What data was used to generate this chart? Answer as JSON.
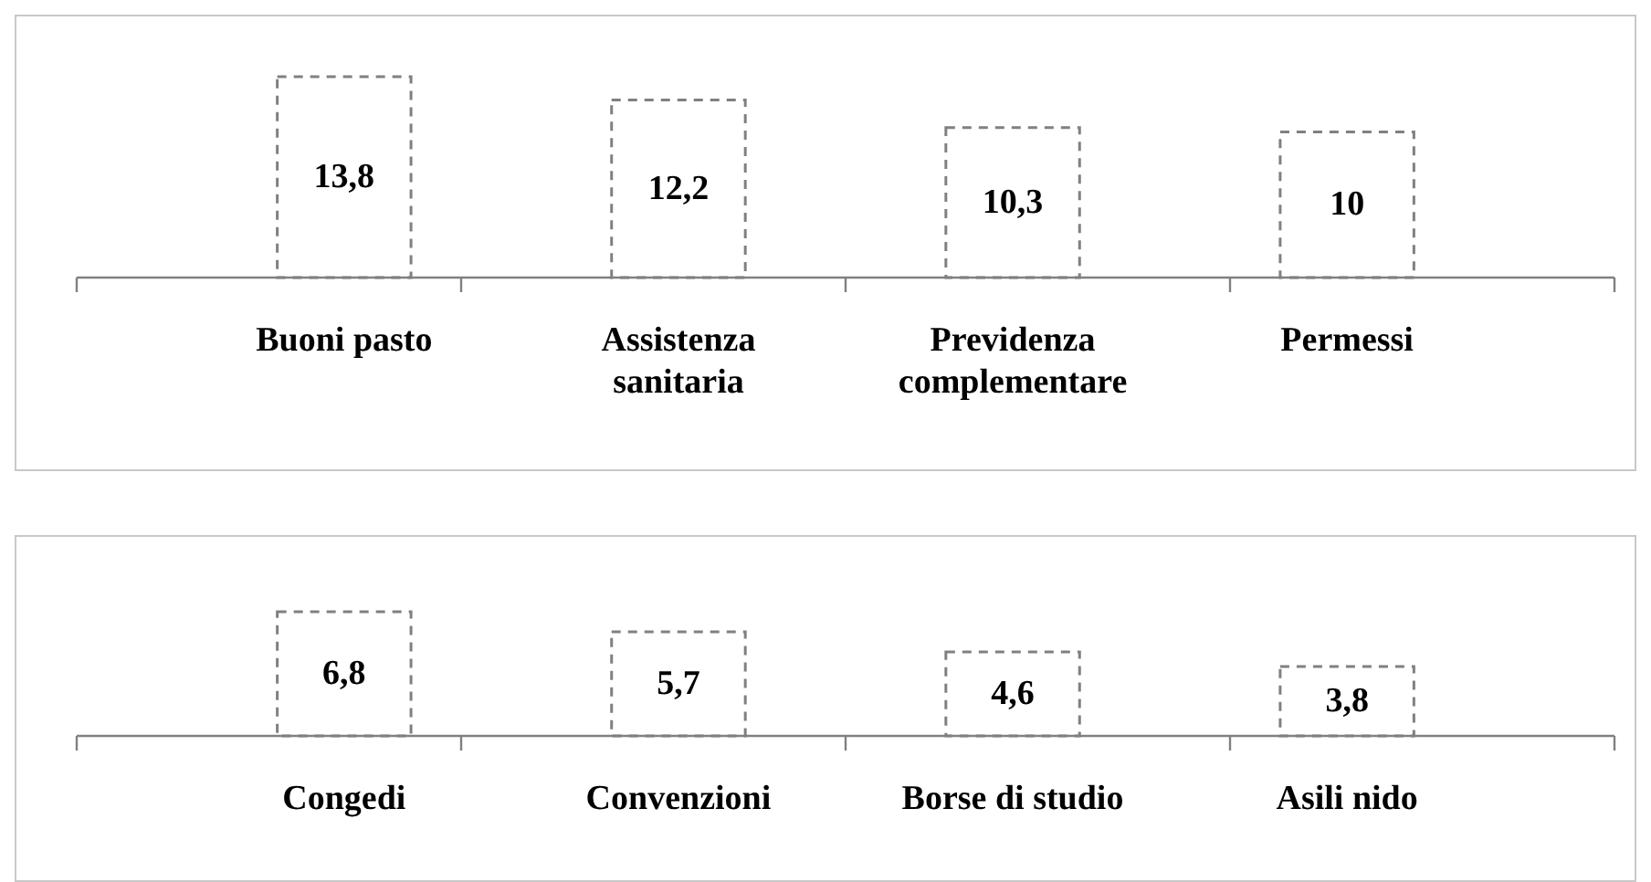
{
  "chart_data": [
    {
      "type": "bar",
      "categories": [
        "Buoni pasto",
        "Assistenza sanitaria",
        "Previdenza complementare",
        "Permessi"
      ],
      "values": [
        13.8,
        12.2,
        10.3,
        10
      ],
      "value_labels": [
        "13,8",
        "12,2",
        "10,3",
        "10"
      ],
      "color": "#808080",
      "line_style": "dashed",
      "tick_labels": "x"
    },
    {
      "type": "bar",
      "categories": [
        "Congedi",
        "Convenzioni",
        "Borse di studio",
        "Asili nido"
      ],
      "values": [
        6.8,
        5.7,
        4.6,
        3.8
      ],
      "value_labels": [
        "6,8",
        "5,7",
        "4,6",
        "3,8"
      ],
      "color": "#808080",
      "line_style": "dashed",
      "tick_labels": "x"
    }
  ]
}
